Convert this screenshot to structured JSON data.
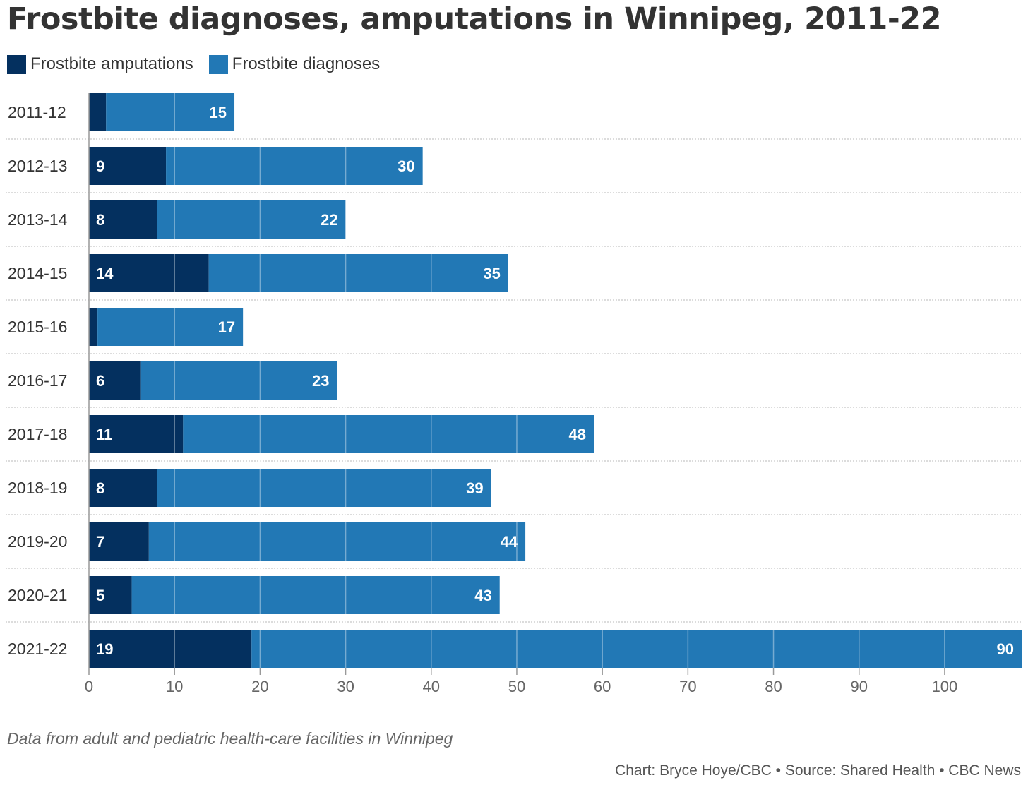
{
  "title": "Frostbite diagnoses, amputations in Winnipeg, 2011-22",
  "legend": [
    {
      "label": "Frostbite amputations",
      "color": "#04305f"
    },
    {
      "label": "Frostbite diagnoses",
      "color": "#2278b5"
    }
  ],
  "chart_data": {
    "type": "bar",
    "orientation": "horizontal",
    "stacked": true,
    "title": "Frostbite diagnoses, amputations in Winnipeg, 2011-22",
    "categories": [
      "2011-12",
      "2012-13",
      "2013-14",
      "2014-15",
      "2015-16",
      "2016-17",
      "2017-18",
      "2018-19",
      "2019-20",
      "2020-21",
      "2021-22"
    ],
    "series": [
      {
        "name": "Frostbite amputations",
        "color": "#04305f",
        "values": [
          2,
          9,
          8,
          14,
          1,
          6,
          11,
          8,
          7,
          5,
          19
        ],
        "labels": [
          "",
          "9",
          "8",
          "14",
          "",
          "6",
          "11",
          "8",
          "7",
          "5",
          "19"
        ]
      },
      {
        "name": "Frostbite diagnoses",
        "color": "#2278b5",
        "values": [
          15,
          30,
          22,
          35,
          17,
          23,
          48,
          39,
          44,
          43,
          90
        ],
        "labels": [
          "15",
          "30",
          "22",
          "35",
          "17",
          "23",
          "48",
          "39",
          "44",
          "43",
          "90"
        ]
      }
    ],
    "xlim": [
      0,
      109
    ],
    "xticks": [
      0,
      10,
      20,
      30,
      40,
      50,
      60,
      70,
      80,
      90,
      100
    ],
    "xlabel": "",
    "ylabel": "",
    "grid": true,
    "legend_position": "top-left"
  },
  "note": "Data from adult and pediatric health-care facilities in Winnipeg",
  "credit": "Chart: Bryce Hoye/CBC • Source: Shared Health • CBC News"
}
